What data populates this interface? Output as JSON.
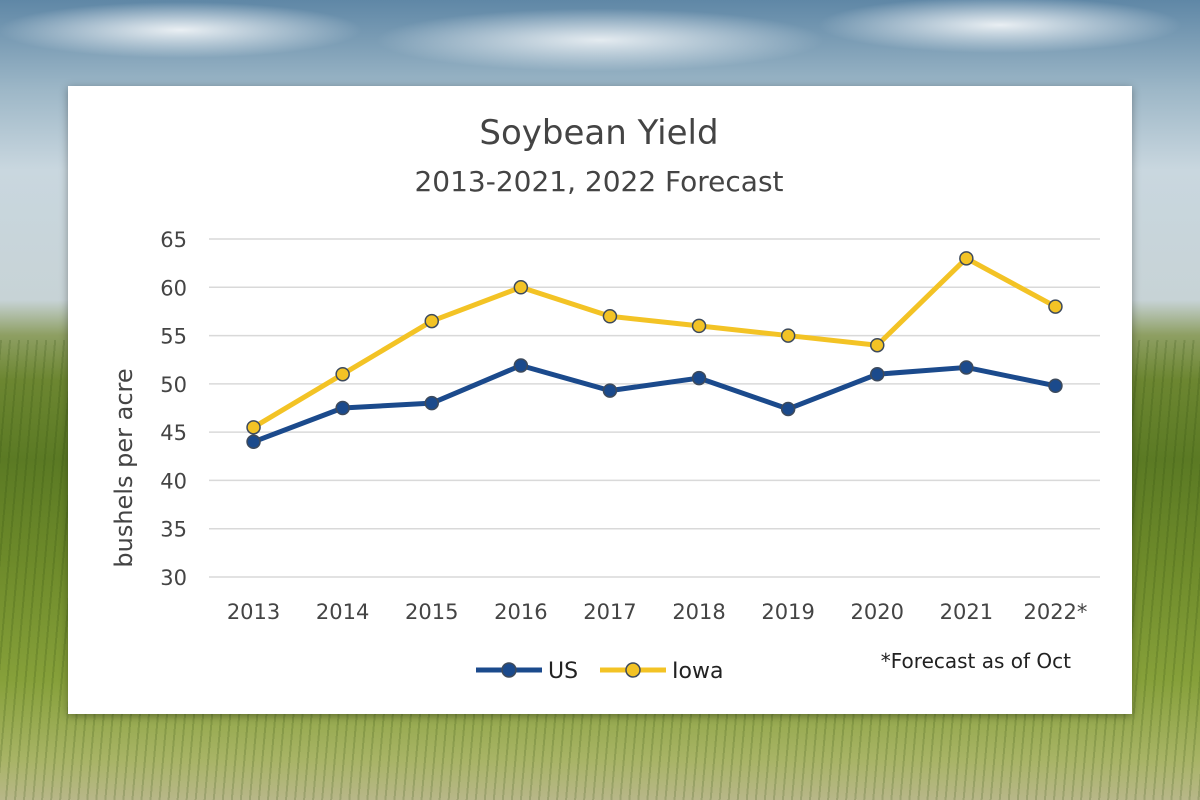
{
  "colors": {
    "us": "#1b4a8c",
    "iowa": "#f3c325",
    "marker_edge": "#3d4a5c",
    "grid": "#d9d9d9",
    "text": "#444444"
  },
  "chart_data": {
    "type": "line",
    "title": "Soybean Yield",
    "subtitle": "2013-2021, 2022 Forecast",
    "ylabel": "bushels per acre",
    "xlabel": "",
    "categories": [
      "2013",
      "2014",
      "2015",
      "2016",
      "2017",
      "2018",
      "2019",
      "2020",
      "2021",
      "2022*"
    ],
    "ylim": [
      30,
      65
    ],
    "yticks": [
      30,
      35,
      40,
      45,
      50,
      55,
      60,
      65
    ],
    "grid": true,
    "legend_position": "bottom",
    "series": [
      {
        "name": "US",
        "values": [
          44.0,
          47.5,
          48.0,
          51.9,
          49.3,
          50.6,
          47.4,
          51.0,
          51.7,
          49.8
        ]
      },
      {
        "name": "Iowa",
        "values": [
          45.5,
          51.0,
          56.5,
          60.0,
          57.0,
          56.0,
          55.0,
          54.0,
          63.0,
          58.0
        ]
      }
    ],
    "annotation": "*Forecast as of Oct"
  }
}
